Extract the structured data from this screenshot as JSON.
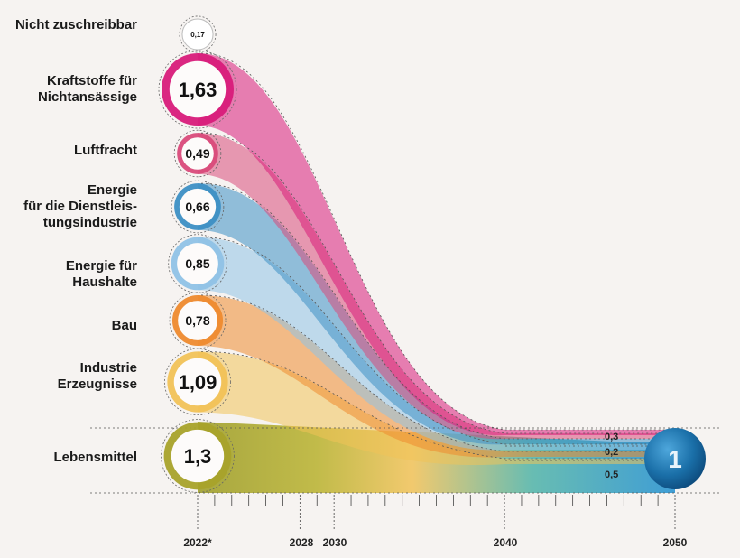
{
  "chart_data": {
    "type": "area",
    "title": "",
    "xlabel": "",
    "ylabel": "",
    "x": [
      "2022*",
      "2028",
      "2030",
      "2040",
      "2050"
    ],
    "categories": [
      "Nicht zuschreibbar",
      "Kraftstoffe für\nNichtansässige",
      "Luftfracht",
      "Energie\nfür die Dienstleis-\ntungsindustrie",
      "Energie für\nHaushalte",
      "Bau",
      "Industrie\nErzeugnisse",
      "Lebensmittel"
    ],
    "values_2022": [
      "0,17",
      "1,63",
      "0,49",
      "0,66",
      "0,85",
      "0,78",
      "1,09",
      "1,3"
    ],
    "values_2022_numeric": [
      0.17,
      1.63,
      0.49,
      0.66,
      0.85,
      0.78,
      1.09,
      1.3
    ],
    "colors": [
      "#cccccc",
      "#d81b7a",
      "#d94a7a",
      "#3d8fc4",
      "#8fc2e6",
      "#ee8a2e",
      "#f1c257",
      "#a8a22a"
    ],
    "target_2050": {
      "total": "1",
      "segments": [
        {
          "label": "0,3",
          "value": 0.3
        },
        {
          "label": "0,2",
          "value": 0.2
        },
        {
          "label": "0,5",
          "value": 0.5
        }
      ]
    }
  }
}
